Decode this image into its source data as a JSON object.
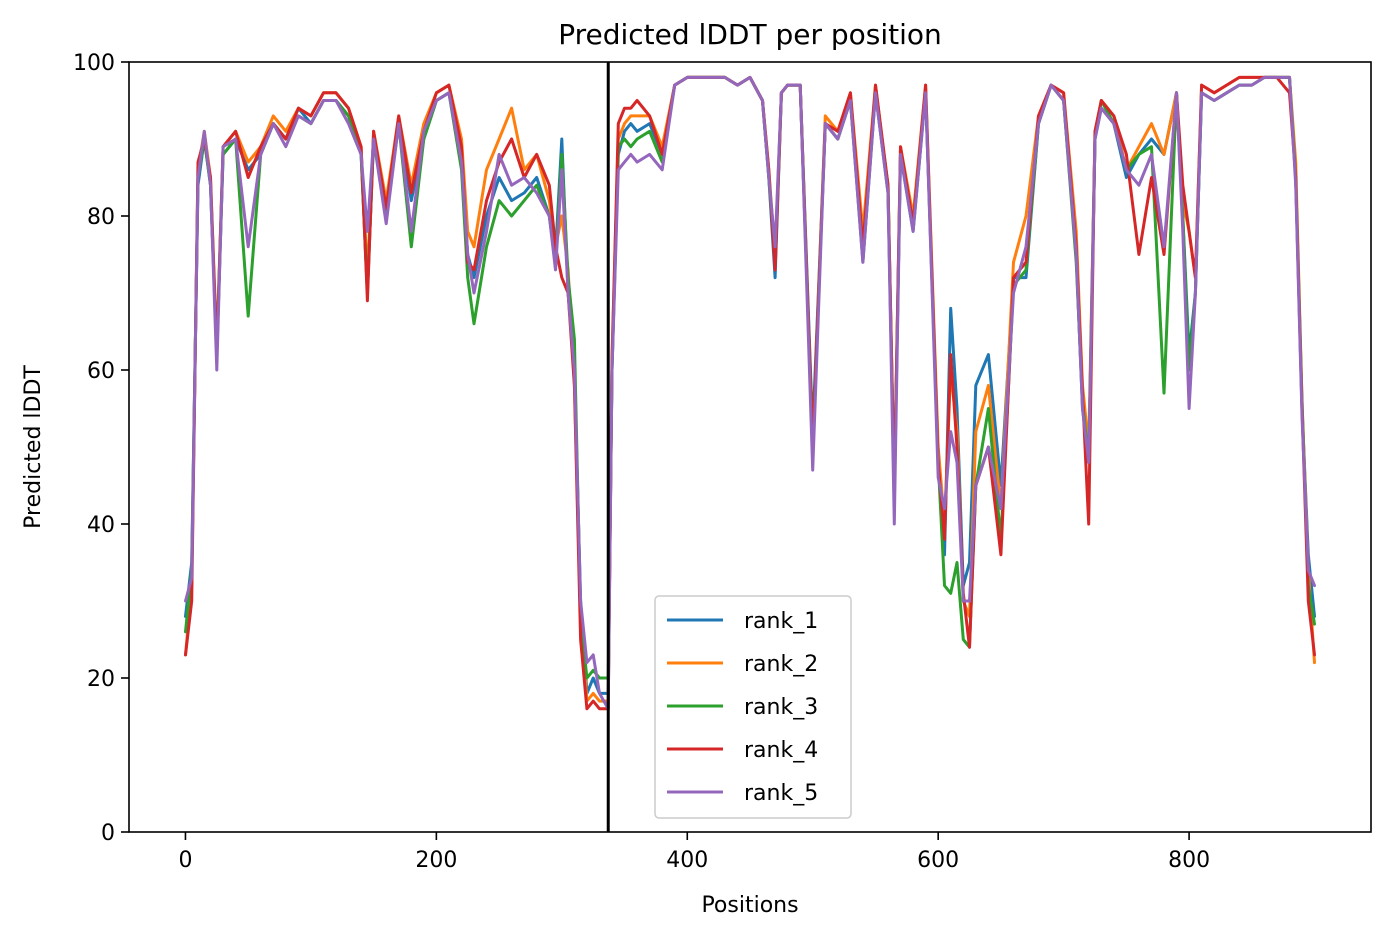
{
  "chart_data": {
    "type": "line",
    "title": "Predicted lDDT per position",
    "xlabel": "Positions",
    "ylabel": "Predicted lDDT",
    "xlim": [
      -45,
      945
    ],
    "ylim": [
      0,
      100
    ],
    "xticks": [
      0,
      200,
      400,
      600,
      800
    ],
    "yticks": [
      0,
      20,
      40,
      60,
      80,
      100
    ],
    "grid": false,
    "legend_position": "lower-center",
    "vline": 337,
    "vline_color": "#000000",
    "series": [
      {
        "name": "rank_1",
        "color": "#1f77b4",
        "x": [
          0,
          5,
          10,
          15,
          20,
          25,
          30,
          40,
          50,
          60,
          70,
          80,
          90,
          100,
          110,
          120,
          130,
          140,
          145,
          150,
          160,
          170,
          180,
          190,
          200,
          210,
          220,
          225,
          230,
          240,
          250,
          260,
          270,
          280,
          290,
          295,
          300,
          305,
          310,
          315,
          320,
          325,
          330,
          337,
          340,
          345,
          350,
          355,
          360,
          370,
          380,
          390,
          400,
          410,
          420,
          430,
          440,
          450,
          460,
          465,
          470,
          475,
          480,
          490,
          500,
          510,
          520,
          530,
          540,
          550,
          560,
          565,
          570,
          580,
          590,
          600,
          605,
          610,
          615,
          620,
          625,
          630,
          640,
          650,
          660,
          670,
          680,
          690,
          700,
          710,
          715,
          720,
          725,
          730,
          740,
          750,
          760,
          770,
          780,
          790,
          795,
          800,
          805,
          810,
          820,
          830,
          840,
          850,
          860,
          870,
          880,
          885,
          890,
          895,
          900
        ],
        "y": [
          28,
          35,
          84,
          90,
          84,
          62,
          88,
          90,
          86,
          88,
          92,
          90,
          94,
          92,
          95,
          95,
          93,
          88,
          70,
          90,
          80,
          92,
          82,
          90,
          95,
          96,
          88,
          75,
          72,
          80,
          85,
          82,
          83,
          85,
          80,
          75,
          90,
          70,
          60,
          30,
          18,
          20,
          18,
          18,
          60,
          88,
          91,
          92,
          91,
          92,
          88,
          97,
          98,
          98,
          98,
          98,
          97,
          98,
          95,
          85,
          72,
          96,
          97,
          97,
          52,
          92,
          90,
          95,
          74,
          96,
          83,
          44,
          88,
          78,
          96,
          48,
          36,
          68,
          55,
          32,
          35,
          58,
          62,
          45,
          72,
          72,
          92,
          97,
          95,
          75,
          55,
          48,
          90,
          94,
          92,
          85,
          88,
          90,
          88,
          96,
          80,
          62,
          70,
          96,
          95,
          96,
          97,
          97,
          98,
          98,
          98,
          85,
          55,
          36,
          28
        ]
      },
      {
        "name": "rank_2",
        "color": "#ff7f0e",
        "x": [
          0,
          5,
          10,
          15,
          20,
          25,
          30,
          40,
          50,
          60,
          70,
          80,
          90,
          100,
          110,
          120,
          130,
          140,
          145,
          150,
          160,
          170,
          180,
          190,
          200,
          210,
          220,
          225,
          230,
          240,
          250,
          260,
          270,
          280,
          290,
          295,
          300,
          305,
          310,
          315,
          320,
          325,
          330,
          337,
          340,
          345,
          350,
          355,
          360,
          370,
          380,
          390,
          400,
          410,
          420,
          430,
          440,
          450,
          460,
          465,
          470,
          475,
          480,
          490,
          500,
          510,
          520,
          530,
          540,
          550,
          560,
          565,
          570,
          580,
          590,
          600,
          605,
          610,
          615,
          620,
          625,
          630,
          640,
          650,
          660,
          670,
          680,
          690,
          700,
          710,
          715,
          720,
          725,
          730,
          740,
          750,
          760,
          770,
          780,
          790,
          795,
          800,
          805,
          810,
          820,
          830,
          840,
          850,
          860,
          870,
          880,
          885,
          890,
          895,
          900
        ],
        "y": [
          23,
          32,
          86,
          91,
          85,
          63,
          89,
          91,
          87,
          89,
          93,
          91,
          94,
          93,
          96,
          96,
          94,
          89,
          72,
          91,
          82,
          93,
          84,
          92,
          96,
          97,
          90,
          78,
          76,
          86,
          90,
          94,
          86,
          88,
          82,
          76,
          80,
          73,
          58,
          28,
          17,
          18,
          17,
          17,
          62,
          90,
          92,
          93,
          93,
          93,
          89,
          97,
          98,
          98,
          98,
          98,
          97,
          98,
          95,
          86,
          75,
          96,
          97,
          97,
          50,
          93,
          91,
          96,
          78,
          97,
          84,
          45,
          89,
          80,
          97,
          50,
          40,
          60,
          52,
          30,
          28,
          52,
          58,
          42,
          74,
          80,
          93,
          97,
          96,
          78,
          58,
          50,
          91,
          95,
          93,
          86,
          89,
          92,
          88,
          96,
          82,
          78,
          72,
          97,
          96,
          97,
          98,
          98,
          98,
          98,
          98,
          87,
          56,
          34,
          22
        ]
      },
      {
        "name": "rank_3",
        "color": "#2ca02c",
        "x": [
          0,
          5,
          10,
          15,
          20,
          25,
          30,
          40,
          50,
          60,
          70,
          80,
          90,
          100,
          110,
          120,
          130,
          140,
          145,
          150,
          160,
          170,
          180,
          190,
          200,
          210,
          220,
          225,
          230,
          240,
          250,
          260,
          270,
          280,
          290,
          295,
          300,
          305,
          310,
          315,
          320,
          325,
          330,
          337,
          340,
          345,
          350,
          355,
          360,
          370,
          380,
          390,
          400,
          410,
          420,
          430,
          440,
          450,
          460,
          465,
          470,
          475,
          480,
          490,
          500,
          510,
          520,
          530,
          540,
          550,
          560,
          565,
          570,
          580,
          590,
          600,
          605,
          610,
          615,
          620,
          625,
          630,
          640,
          650,
          660,
          670,
          680,
          690,
          700,
          710,
          715,
          720,
          725,
          730,
          740,
          750,
          760,
          770,
          780,
          790,
          795,
          800,
          805,
          810,
          820,
          830,
          840,
          850,
          860,
          870,
          880,
          885,
          890,
          895,
          900
        ],
        "y": [
          26,
          34,
          85,
          90,
          84,
          62,
          88,
          90,
          67,
          88,
          92,
          90,
          93,
          92,
          95,
          95,
          93,
          88,
          70,
          90,
          80,
          92,
          76,
          90,
          95,
          96,
          86,
          72,
          66,
          76,
          82,
          80,
          82,
          84,
          80,
          74,
          88,
          72,
          64,
          28,
          20,
          21,
          20,
          20,
          60,
          89,
          90,
          89,
          90,
          91,
          87,
          97,
          98,
          98,
          98,
          98,
          97,
          98,
          95,
          85,
          74,
          96,
          97,
          97,
          50,
          92,
          90,
          95,
          76,
          96,
          84,
          44,
          88,
          79,
          96,
          48,
          32,
          31,
          35,
          25,
          24,
          45,
          55,
          38,
          71,
          73,
          92,
          97,
          95,
          74,
          56,
          48,
          90,
          95,
          92,
          86,
          88,
          89,
          57,
          96,
          80,
          60,
          70,
          96,
          95,
          96,
          97,
          97,
          98,
          98,
          98,
          85,
          56,
          32,
          27
        ]
      },
      {
        "name": "rank_4",
        "color": "#d62728",
        "x": [
          0,
          5,
          10,
          15,
          20,
          25,
          30,
          40,
          50,
          60,
          70,
          80,
          90,
          100,
          110,
          120,
          130,
          140,
          145,
          150,
          160,
          170,
          180,
          190,
          200,
          210,
          220,
          225,
          230,
          240,
          250,
          260,
          270,
          280,
          290,
          295,
          300,
          305,
          310,
          315,
          320,
          325,
          330,
          337,
          340,
          345,
          350,
          355,
          360,
          370,
          380,
          390,
          400,
          410,
          420,
          430,
          440,
          450,
          460,
          465,
          470,
          475,
          480,
          490,
          500,
          510,
          520,
          530,
          540,
          550,
          560,
          565,
          570,
          580,
          590,
          600,
          605,
          610,
          615,
          620,
          625,
          630,
          640,
          650,
          660,
          670,
          680,
          690,
          700,
          710,
          715,
          720,
          725,
          730,
          740,
          750,
          760,
          770,
          780,
          790,
          795,
          800,
          805,
          810,
          820,
          830,
          840,
          850,
          860,
          870,
          880,
          885,
          890,
          895,
          900
        ],
        "y": [
          23,
          30,
          87,
          90,
          85,
          62,
          89,
          91,
          85,
          89,
          92,
          90,
          94,
          93,
          96,
          96,
          94,
          89,
          69,
          91,
          81,
          93,
          83,
          91,
          96,
          97,
          89,
          74,
          73,
          82,
          87,
          90,
          85,
          88,
          84,
          76,
          72,
          70,
          58,
          25,
          16,
          17,
          16,
          16,
          61,
          92,
          94,
          94,
          95,
          93,
          88,
          97,
          98,
          98,
          98,
          98,
          97,
          98,
          95,
          86,
          73,
          96,
          97,
          97,
          50,
          92,
          91,
          96,
          76,
          97,
          84,
          44,
          89,
          79,
          97,
          48,
          38,
          62,
          50,
          31,
          24,
          45,
          50,
          36,
          72,
          74,
          93,
          97,
          96,
          76,
          57,
          40,
          91,
          95,
          93,
          88,
          75,
          85,
          75,
          96,
          84,
          78,
          72,
          97,
          96,
          97,
          98,
          98,
          98,
          98,
          96,
          85,
          55,
          30,
          23
        ]
      },
      {
        "name": "rank_5",
        "color": "#9467bd",
        "x": [
          0,
          5,
          10,
          15,
          20,
          25,
          30,
          40,
          50,
          60,
          70,
          80,
          90,
          100,
          110,
          120,
          130,
          140,
          145,
          150,
          160,
          170,
          180,
          190,
          200,
          210,
          220,
          225,
          230,
          240,
          250,
          260,
          270,
          280,
          290,
          295,
          300,
          305,
          310,
          315,
          320,
          325,
          330,
          337,
          340,
          345,
          350,
          355,
          360,
          370,
          380,
          390,
          400,
          410,
          420,
          430,
          440,
          450,
          460,
          465,
          470,
          475,
          480,
          490,
          500,
          510,
          520,
          530,
          540,
          550,
          560,
          565,
          570,
          580,
          590,
          600,
          605,
          610,
          615,
          620,
          625,
          630,
          640,
          650,
          660,
          670,
          680,
          690,
          700,
          710,
          715,
          720,
          725,
          730,
          740,
          750,
          760,
          770,
          780,
          790,
          795,
          800,
          805,
          810,
          820,
          830,
          840,
          850,
          860,
          870,
          880,
          885,
          890,
          895,
          900
        ],
        "y": [
          30,
          33,
          85,
          91,
          84,
          60,
          89,
          90,
          76,
          88,
          92,
          89,
          93,
          92,
          95,
          95,
          92,
          88,
          78,
          90,
          79,
          92,
          78,
          91,
          95,
          96,
          87,
          75,
          70,
          78,
          88,
          84,
          85,
          83,
          80,
          73,
          86,
          70,
          60,
          30,
          22,
          23,
          18,
          16,
          60,
          86,
          87,
          88,
          87,
          88,
          86,
          97,
          98,
          98,
          98,
          98,
          97,
          98,
          95,
          85,
          76,
          96,
          97,
          97,
          47,
          92,
          90,
          95,
          74,
          96,
          83,
          40,
          88,
          78,
          96,
          46,
          42,
          52,
          48,
          30,
          30,
          45,
          50,
          42,
          70,
          76,
          92,
          97,
          95,
          75,
          55,
          48,
          90,
          94,
          92,
          86,
          84,
          88,
          76,
          96,
          78,
          55,
          70,
          96,
          95,
          96,
          97,
          97,
          98,
          98,
          98,
          84,
          54,
          34,
          32
        ]
      }
    ]
  }
}
